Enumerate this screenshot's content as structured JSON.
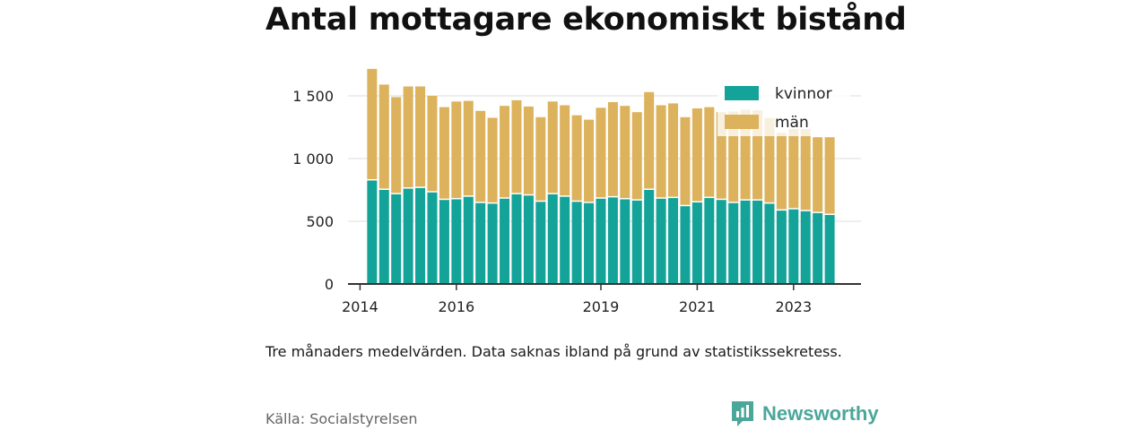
{
  "title": "Antal mottagare ekonomiskt bistånd",
  "note": "Tre månaders medelvärden. Data saknas ibland på grund av statistikssekretess.",
  "source": "Källa: Socialstyrelsen",
  "brand": "Newsworthy",
  "colors": {
    "kvinnor": "#13a399",
    "man": "#dcb25c",
    "grid": "#dddddd",
    "axis": "#333333",
    "brand": "#4aa79a"
  },
  "chart_data": {
    "type": "bar",
    "stacked": true,
    "x": [
      2014.25,
      2014.5,
      2014.75,
      2015.0,
      2015.25,
      2015.5,
      2015.75,
      2016.0,
      2016.25,
      2016.5,
      2016.75,
      2017.0,
      2017.25,
      2017.5,
      2017.75,
      2018.0,
      2018.25,
      2018.5,
      2018.75,
      2019.0,
      2019.25,
      2019.5,
      2019.75,
      2020.0,
      2020.25,
      2020.5,
      2020.75,
      2021.0,
      2021.25,
      2021.5,
      2021.75,
      2022.0,
      2022.25,
      2022.5,
      2022.75,
      2023.0,
      2023.25,
      2023.5,
      2023.75
    ],
    "series": [
      {
        "name": "kvinnor",
        "values": [
          825,
          750,
          715,
          760,
          765,
          730,
          670,
          675,
          695,
          645,
          640,
          680,
          715,
          705,
          655,
          715,
          695,
          655,
          645,
          680,
          690,
          675,
          665,
          750,
          680,
          685,
          620,
          650,
          685,
          670,
          645,
          665,
          665,
          640,
          585,
          595,
          580,
          565,
          550
        ]
      },
      {
        "name": "män",
        "values": [
          890,
          840,
          775,
          815,
          810,
          770,
          740,
          780,
          765,
          735,
          685,
          740,
          750,
          710,
          675,
          740,
          730,
          690,
          665,
          725,
          760,
          745,
          705,
          780,
          745,
          755,
          710,
          750,
          725,
          700,
          730,
          725,
          720,
          685,
          620,
          640,
          655,
          605,
          620
        ]
      }
    ],
    "xticks": [
      "2014",
      "2016",
      "2019",
      "2021",
      "2023"
    ],
    "yticks": [
      "0",
      "500",
      "1 000",
      "1 500"
    ],
    "ylim": [
      0,
      1750
    ],
    "xlim": [
      2013.75,
      2024.4
    ],
    "legend": [
      "kvinnor",
      "män"
    ],
    "legend_position": "top-right",
    "grid": "horizontal"
  }
}
